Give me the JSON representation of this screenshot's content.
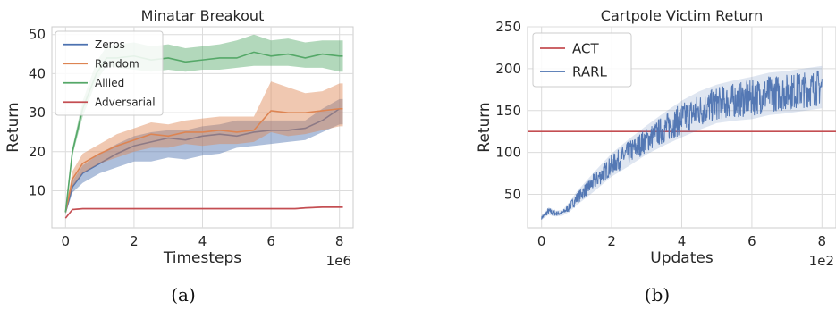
{
  "captions": [
    "(a)",
    "(b)"
  ],
  "chart_data": [
    {
      "type": "line",
      "title": "Minatar Breakout",
      "xlabel": "Timesteps",
      "ylabel": "Return",
      "x_scale_label": "1e6",
      "xlim": [
        -0.4,
        8.4
      ],
      "ylim": [
        0.5,
        52
      ],
      "xticks": [
        0,
        2,
        4,
        6,
        8
      ],
      "xtick_labels": [
        "0",
        "2",
        "4",
        "6",
        "8"
      ],
      "yticks": [
        10,
        20,
        30,
        40,
        50
      ],
      "ytick_labels": [
        "10",
        "20",
        "30",
        "40",
        "50"
      ],
      "grid": true,
      "legend_position": "top-left",
      "x_unit_multiplier": 1000000,
      "series": [
        {
          "name": "Zeros",
          "color": "#4c72b0",
          "x": [
            0,
            0.2,
            0.5,
            1.0,
            1.5,
            2.0,
            2.5,
            3.0,
            3.5,
            4.0,
            4.5,
            5.0,
            5.5,
            6.0,
            6.5,
            7.0,
            7.5,
            8.0,
            8.1
          ],
          "y": [
            4.5,
            11,
            14.5,
            17,
            19.5,
            21.5,
            22.5,
            23.5,
            23,
            24,
            24.5,
            24,
            25,
            25.5,
            25.5,
            26,
            28,
            31,
            31
          ],
          "lower": [
            4,
            9.5,
            12,
            14.5,
            16,
            17.5,
            17.5,
            18.5,
            18,
            19,
            19.5,
            21,
            21.5,
            22,
            22.5,
            23,
            25,
            27,
            27
          ],
          "upper": [
            5,
            12.5,
            16.5,
            19.5,
            22,
            24,
            25,
            25.5,
            25.5,
            26.5,
            27,
            28,
            28,
            28,
            28,
            28,
            31,
            33.5,
            33.5
          ]
        },
        {
          "name": "Random",
          "color": "#dd8452",
          "x": [
            0,
            0.2,
            0.5,
            1.0,
            1.5,
            2.0,
            2.5,
            3.0,
            3.5,
            4.0,
            4.5,
            5.0,
            5.5,
            6.0,
            6.5,
            7.0,
            7.5,
            8.0,
            8.1
          ],
          "y": [
            4.5,
            13,
            17,
            19.5,
            21.5,
            23,
            24.5,
            24,
            25,
            25,
            25.5,
            25,
            25.5,
            30.5,
            30,
            30,
            30.5,
            31,
            31
          ],
          "lower": [
            4,
            11,
            14.5,
            17,
            18.5,
            20,
            21,
            21,
            22,
            21.5,
            22,
            22,
            22.5,
            25,
            24,
            24.5,
            25.5,
            26.5,
            26.5
          ],
          "upper": [
            5,
            15,
            19.5,
            22,
            24.5,
            26,
            27.5,
            27,
            28,
            28.5,
            29,
            29,
            29,
            38,
            36.5,
            35,
            35.5,
            37.5,
            37.5
          ]
        },
        {
          "name": "Allied",
          "color": "#55a868",
          "x": [
            0,
            0.2,
            0.5,
            0.9,
            1.2,
            1.5,
            2.0,
            2.5,
            3.0,
            3.5,
            4.0,
            4.5,
            5.0,
            5.5,
            6.0,
            6.5,
            7.0,
            7.5,
            8.0,
            8.1
          ],
          "y": [
            4.5,
            20,
            31,
            40,
            44,
            44,
            44.5,
            43.5,
            44,
            43,
            43.5,
            44,
            44,
            45.5,
            44.5,
            45,
            44,
            45,
            44.5,
            44.5
          ],
          "lower": [
            4,
            19,
            29,
            38,
            42,
            41.5,
            41,
            40.5,
            41,
            40.5,
            41,
            41,
            41.5,
            42,
            42,
            42,
            41.5,
            41.5,
            40.5,
            40.5
          ],
          "upper": [
            5,
            21,
            33,
            43,
            47,
            47.5,
            48,
            47,
            47.5,
            46.5,
            47,
            47.5,
            48.5,
            50,
            48.5,
            49,
            48,
            48.5,
            48.5,
            48.5
          ]
        },
        {
          "name": "Adversarial",
          "color": "#c44e52",
          "x": [
            0,
            0.2,
            0.5,
            1.0,
            2.0,
            3.0,
            4.0,
            5.0,
            6.0,
            6.7,
            7.0,
            7.5,
            8.0,
            8.1
          ],
          "y": [
            3,
            5.2,
            5.4,
            5.4,
            5.4,
            5.4,
            5.4,
            5.4,
            5.4,
            5.4,
            5.6,
            5.8,
            5.8,
            5.8
          ],
          "lower": [
            2.8,
            5.0,
            5.2,
            5.2,
            5.2,
            5.2,
            5.2,
            5.2,
            5.2,
            5.2,
            5.4,
            5.6,
            5.6,
            5.6
          ],
          "upper": [
            3.2,
            5.4,
            5.6,
            5.6,
            5.6,
            5.6,
            5.6,
            5.6,
            5.6,
            5.6,
            5.8,
            6.0,
            6.0,
            6.0
          ]
        }
      ]
    },
    {
      "type": "line",
      "title": "Cartpole Victim Return",
      "xlabel": "Updates",
      "ylabel": "Return",
      "x_scale_label": "1e2",
      "xlim": [
        -0.4,
        8.4
      ],
      "ylim": [
        10,
        250
      ],
      "xticks": [
        0,
        2,
        4,
        6,
        8
      ],
      "xtick_labels": [
        "0",
        "2",
        "4",
        "6",
        "8"
      ],
      "yticks": [
        50,
        100,
        150,
        200,
        250
      ],
      "ytick_labels": [
        "50",
        "100",
        "150",
        "200",
        "250"
      ],
      "grid": true,
      "legend_position": "top-left",
      "x_unit_multiplier": 100,
      "series": [
        {
          "name": "ACT",
          "color": "#c44e52",
          "x": [
            -0.4,
            8.4
          ],
          "y": [
            125,
            125
          ]
        },
        {
          "name": "RARL",
          "color": "#4c72b0",
          "noisy": true,
          "x": [
            0,
            0.2,
            0.4,
            0.6,
            0.8,
            1.0,
            1.5,
            2.0,
            2.5,
            3.0,
            3.5,
            4.0,
            4.5,
            5.0,
            5.5,
            6.0,
            6.5,
            7.0,
            7.5,
            8.0
          ],
          "y": [
            22,
            30,
            27,
            28,
            35,
            45,
            65,
            85,
            100,
            115,
            128,
            140,
            150,
            158,
            162,
            165,
            170,
            172,
            175,
            178
          ],
          "amplitude": [
            2,
            4,
            3,
            3,
            5,
            7,
            10,
            12,
            14,
            15,
            17,
            19,
            20,
            20,
            21,
            22,
            22,
            22,
            22,
            22
          ]
        }
      ]
    }
  ]
}
